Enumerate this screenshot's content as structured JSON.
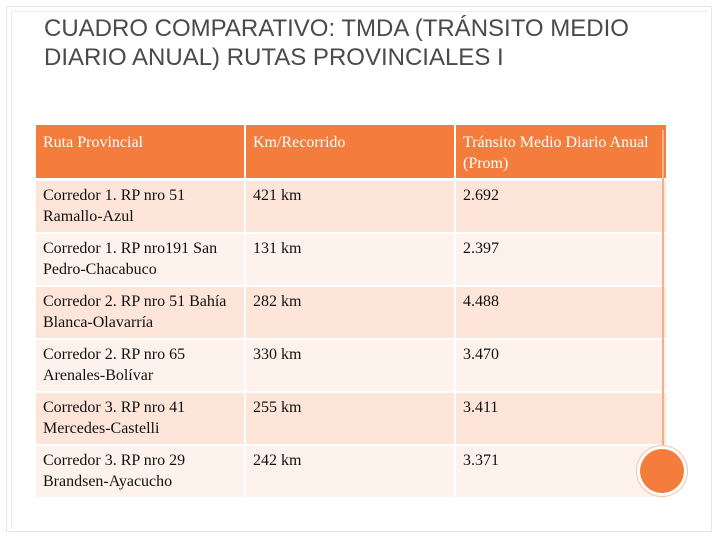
{
  "slide": {
    "title": "CUADRO COMPARATIVO: TMDA (TRÁNSITO MEDIO DIARIO ANUAL) RUTAS PROVINCIALES I"
  },
  "table": {
    "headers": [
      "Ruta  Provincial",
      "Km/Recorrido",
      "Tránsito Medio Diario Anual (Prom)"
    ],
    "rows": [
      [
        "Corredor 1. RP nro 51 Ramallo-Azul",
        "421 km",
        "2.692"
      ],
      [
        "Corredor 1. RP nro191 San Pedro-Chacabuco",
        "131 km",
        "2.397"
      ],
      [
        "Corredor 2. RP nro 51 Bahía Blanca-Olavarría",
        "282 km",
        "4.488"
      ],
      [
        "Corredor 2. RP nro 65 Arenales-Bolívar",
        "330 km",
        "3.470"
      ],
      [
        "Corredor 3. RP nro 41 Mercedes-Castelli",
        "255 km",
        "3.411"
      ],
      [
        "Corredor 3. RP nro 29 Brandsen-Ayacucho",
        "242 km",
        "3.371"
      ]
    ]
  },
  "colors": {
    "accent": "#f47c3c",
    "row_odd": "#fde5d9",
    "row_even": "#fef2ec",
    "title_text": "#4a4a4a"
  }
}
